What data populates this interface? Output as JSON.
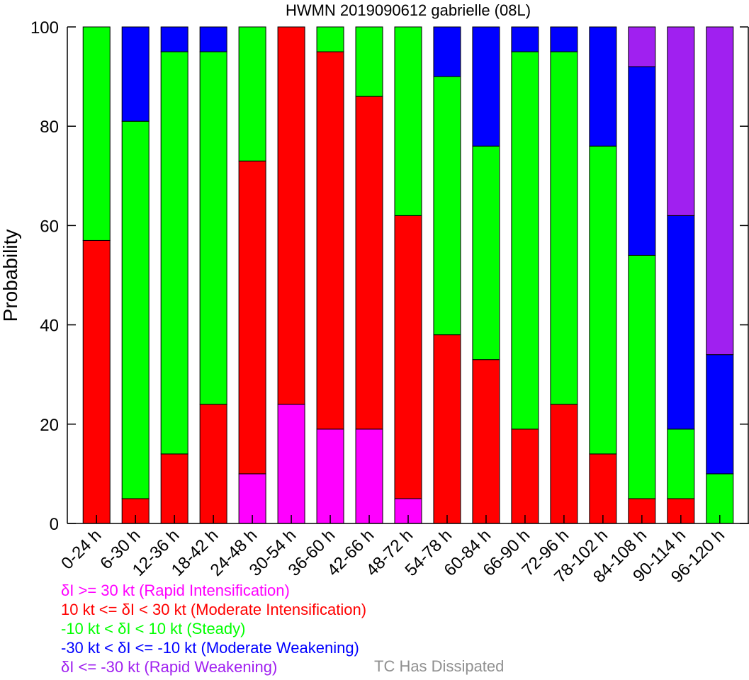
{
  "chart_data": {
    "type": "bar",
    "stacked": true,
    "title": "HWMN 2019090612 gabrielle (08L)",
    "ylabel": "Probability",
    "xlabel": "",
    "ylim": [
      0,
      100
    ],
    "yticks": [
      0,
      20,
      40,
      60,
      80,
      100
    ],
    "categories": [
      "0-24 h",
      "6-30 h",
      "12-36 h",
      "18-42 h",
      "24-48 h",
      "30-54 h",
      "36-60 h",
      "42-66 h",
      "48-72 h",
      "54-78 h",
      "60-84 h",
      "66-90 h",
      "72-96 h",
      "78-102 h",
      "84-108 h",
      "90-114 h",
      "96-120 h"
    ],
    "series": [
      {
        "name": "δI >= 30 kt (Rapid Intensification)",
        "color": "#ff00ff",
        "values": [
          0,
          0,
          0,
          0,
          10,
          24,
          19,
          19,
          5,
          0,
          0,
          0,
          0,
          0,
          0,
          0,
          0
        ]
      },
      {
        "name": "10 kt <= δI < 30 kt (Moderate Intensification)",
        "color": "#ff0000",
        "values": [
          57,
          5,
          14,
          24,
          63,
          76,
          76,
          67,
          57,
          38,
          33,
          19,
          24,
          14,
          5,
          5,
          0
        ]
      },
      {
        "name": "-10 kt < δI < 10 kt (Steady)",
        "color": "#00ff00",
        "values": [
          43,
          76,
          81,
          71,
          27,
          0,
          5,
          14,
          38,
          52,
          43,
          76,
          71,
          62,
          49,
          14,
          10
        ]
      },
      {
        "name": "-30 kt < δI <= -10 kt (Moderate Weakening)",
        "color": "#0000ff",
        "values": [
          0,
          19,
          5,
          5,
          0,
          0,
          0,
          0,
          0,
          10,
          24,
          5,
          5,
          24,
          38,
          43,
          24
        ]
      },
      {
        "name": "δI <= -30 kt (Rapid Weakening)",
        "color": "#a020f0",
        "values": [
          0,
          0,
          0,
          0,
          0,
          0,
          0,
          0,
          0,
          0,
          0,
          0,
          0,
          0,
          8,
          38,
          66
        ]
      }
    ],
    "dissipated_label": "TC Has Dissipated",
    "dissipated_color": "#909090",
    "grid": false,
    "legend": "bottom-left"
  }
}
